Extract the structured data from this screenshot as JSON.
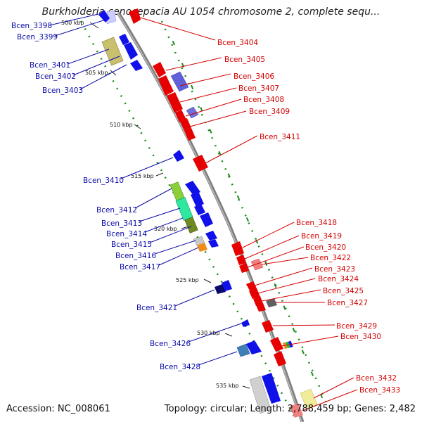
{
  "title": "Burkholderia cenocepacia AU 1054 chromosome 2, complete sequ...",
  "accession": "Accession: NC_008061",
  "topology_info": "Topology: circular; Length: 2,788,459 bp; Genes: 2,482",
  "ticks": [
    {
      "label": "500 kbp"
    },
    {
      "label": "505 kbp"
    },
    {
      "label": "510 kbp"
    },
    {
      "label": "515 kbp"
    },
    {
      "label": "520 kbp"
    },
    {
      "label": "525 kbp"
    },
    {
      "label": "530 kbp"
    },
    {
      "label": "535 kbp"
    }
  ],
  "left_genes": [
    "Bcen_3398",
    "Bcen_3399",
    "Bcen_3401",
    "Bcen_3402",
    "Bcen_3403",
    "Bcen_3410",
    "Bcen_3412",
    "Bcen_3413",
    "Bcen_3414",
    "Bcen_3415",
    "Bcen_3416",
    "Bcen_3417",
    "Bcen_3421",
    "Bcen_3426",
    "Bcen_3428"
  ],
  "right_genes": [
    "Bcen_3404",
    "Bcen_3405",
    "Bcen_3406",
    "Bcen_3407",
    "Bcen_3408",
    "Bcen_3409",
    "Bcen_3411",
    "Bcen_3418",
    "Bcen_3419",
    "Bcen_3420",
    "Bcen_3422",
    "Bcen_3423",
    "Bcen_3424",
    "Bcen_3425",
    "Bcen_3427",
    "Bcen_3429",
    "Bcen_3430",
    "Bcen_3432",
    "Bcen_3433"
  ],
  "colors": {
    "backbone": "#7f7f7f",
    "forward_gene": "#e60000",
    "reverse_gene": "#0000e0",
    "dotted_guide": "#1a8a1a",
    "label_blue": "#0a0aa8",
    "label_red": "#d40000"
  }
}
